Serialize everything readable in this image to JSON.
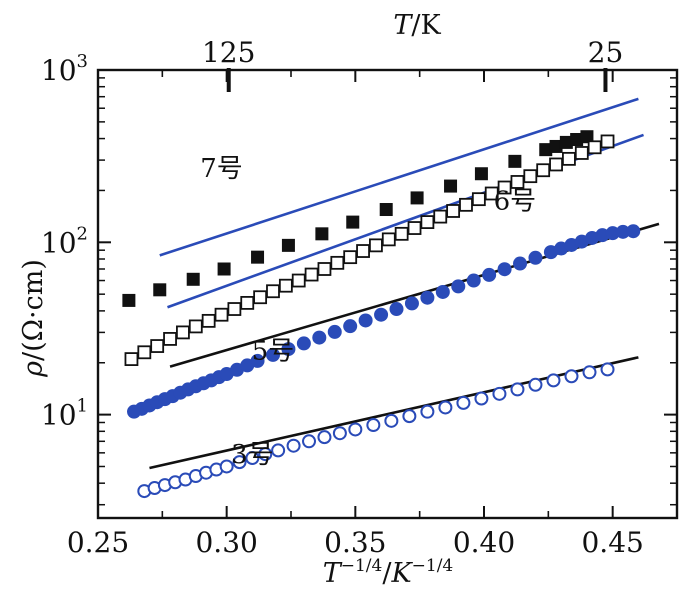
{
  "chart_data": {
    "type": "scatter",
    "title": "",
    "xlabel_parts": {
      "T": "T",
      "exp1": "−1/4",
      "sep": "/",
      "K": "K",
      "exp2": "−1/4"
    },
    "ylabel_parts": {
      "rho": "ρ",
      "unit": "/(Ω·cm)"
    },
    "top_label_parts": {
      "T": "T",
      "unit": "/K"
    },
    "xlim": [
      0.25,
      0.475
    ],
    "ylim_log10": [
      0.4,
      3.0
    ],
    "y_scale": "log",
    "x_ticks": [
      {
        "value": 0.25,
        "label": "0.25"
      },
      {
        "value": 0.3,
        "label": "0.30"
      },
      {
        "value": 0.35,
        "label": "0.35"
      },
      {
        "value": 0.4,
        "label": "0.40"
      },
      {
        "value": 0.45,
        "label": "0.45"
      }
    ],
    "y_ticks": [
      {
        "exponent": 1,
        "base": "10",
        "exp": "1"
      },
      {
        "exponent": 2,
        "base": "10",
        "exp": "2"
      },
      {
        "exponent": 3,
        "base": "10",
        "exp": "3"
      }
    ],
    "top_ticks": [
      {
        "x": 0.3008,
        "label": "125"
      },
      {
        "x": 0.4472,
        "label": "25"
      }
    ],
    "series": [
      {
        "name": "7号",
        "marker": "square-filled",
        "color": "#111111",
        "x": [
          0.262,
          0.274,
          0.287,
          0.299,
          0.312,
          0.324,
          0.337,
          0.349,
          0.362,
          0.374,
          0.387,
          0.399,
          0.412,
          0.424,
          0.428,
          0.432,
          0.436,
          0.44
        ],
        "y": [
          46,
          53,
          61,
          70,
          82,
          96,
          112,
          131,
          155,
          181,
          212,
          250,
          295,
          345,
          360,
          380,
          395,
          410
        ],
        "fit": {
          "color": "#2a4bb8",
          "x": [
            0.274,
            0.46
          ],
          "y": [
            84,
            680
          ]
        }
      },
      {
        "name": "6号",
        "marker": "square-open",
        "color": "#111111",
        "x": [
          0.263,
          0.268,
          0.273,
          0.278,
          0.283,
          0.288,
          0.293,
          0.298,
          0.303,
          0.308,
          0.313,
          0.318,
          0.323,
          0.328,
          0.333,
          0.338,
          0.343,
          0.348,
          0.353,
          0.358,
          0.363,
          0.368,
          0.373,
          0.378,
          0.383,
          0.388,
          0.393,
          0.398,
          0.403,
          0.408,
          0.413,
          0.418,
          0.423,
          0.428,
          0.433,
          0.438,
          0.443,
          0.448
        ],
        "y": [
          21,
          23,
          25,
          27.5,
          30,
          32.5,
          35,
          38,
          41,
          44.5,
          48,
          52,
          56,
          60,
          65,
          70,
          76,
          82,
          89,
          96,
          104,
          112,
          121,
          131,
          141,
          152,
          165,
          178,
          192,
          208,
          224,
          242,
          262,
          283,
          305,
          330,
          356,
          385
        ],
        "fit": {
          "color": "#2a4bb8",
          "x": [
            0.277,
            0.462
          ],
          "y": [
            42,
            420
          ]
        }
      },
      {
        "name": "5号",
        "marker": "circle-filled",
        "color": "#2a4bb8",
        "x": [
          0.264,
          0.267,
          0.27,
          0.273,
          0.276,
          0.279,
          0.282,
          0.285,
          0.288,
          0.291,
          0.294,
          0.297,
          0.3,
          0.304,
          0.308,
          0.312,
          0.318,
          0.324,
          0.33,
          0.336,
          0.342,
          0.348,
          0.354,
          0.36,
          0.366,
          0.372,
          0.378,
          0.384,
          0.39,
          0.396,
          0.402,
          0.408,
          0.414,
          0.42,
          0.426,
          0.43,
          0.434,
          0.438,
          0.442,
          0.446,
          0.45,
          0.454,
          0.458
        ],
        "y": [
          10.4,
          10.8,
          11.3,
          11.8,
          12.3,
          12.8,
          13.4,
          14.0,
          14.6,
          15.2,
          15.8,
          16.5,
          17.2,
          18.2,
          19.3,
          20.5,
          22.2,
          24.0,
          25.9,
          28.0,
          30.2,
          32.6,
          35.2,
          38.0,
          41.0,
          44.2,
          47.7,
          51.5,
          55.5,
          60.0,
          64.7,
          69.8,
          75.3,
          81.3,
          87.7,
          92.0,
          96.5,
          101,
          106,
          110,
          113,
          115,
          116
        ],
        "fit": {
          "color": "#111111",
          "x": [
            0.278,
            0.468
          ],
          "y": [
            19,
            128
          ]
        }
      },
      {
        "name": "3号",
        "marker": "circle-open",
        "color": "#2a4bb8",
        "x": [
          0.268,
          0.272,
          0.276,
          0.28,
          0.284,
          0.288,
          0.292,
          0.296,
          0.3,
          0.305,
          0.31,
          0.315,
          0.32,
          0.326,
          0.332,
          0.338,
          0.344,
          0.35,
          0.357,
          0.364,
          0.371,
          0.378,
          0.385,
          0.392,
          0.399,
          0.406,
          0.413,
          0.42,
          0.427,
          0.434,
          0.441,
          0.448
        ],
        "y": [
          3.6,
          3.75,
          3.9,
          4.05,
          4.2,
          4.4,
          4.6,
          4.8,
          5.0,
          5.3,
          5.6,
          5.9,
          6.2,
          6.6,
          7.0,
          7.4,
          7.8,
          8.2,
          8.7,
          9.2,
          9.8,
          10.4,
          11.0,
          11.7,
          12.4,
          13.2,
          14.0,
          14.9,
          15.8,
          16.7,
          17.6,
          18.3
        ],
        "fit": {
          "color": "#111111",
          "x": [
            0.27,
            0.46
          ],
          "y": [
            4.9,
            21.5
          ]
        }
      }
    ],
    "annotations": [
      {
        "series": 0,
        "text": "7号",
        "x": 0.298,
        "log10y": 2.38
      },
      {
        "series": 1,
        "text": "6号",
        "x": 0.412,
        "log10y": 2.19
      },
      {
        "series": 2,
        "text": "5号",
        "x": 0.318,
        "log10y": 1.32
      },
      {
        "series": 3,
        "text": "3号",
        "x": 0.31,
        "log10y": 0.72
      }
    ]
  }
}
